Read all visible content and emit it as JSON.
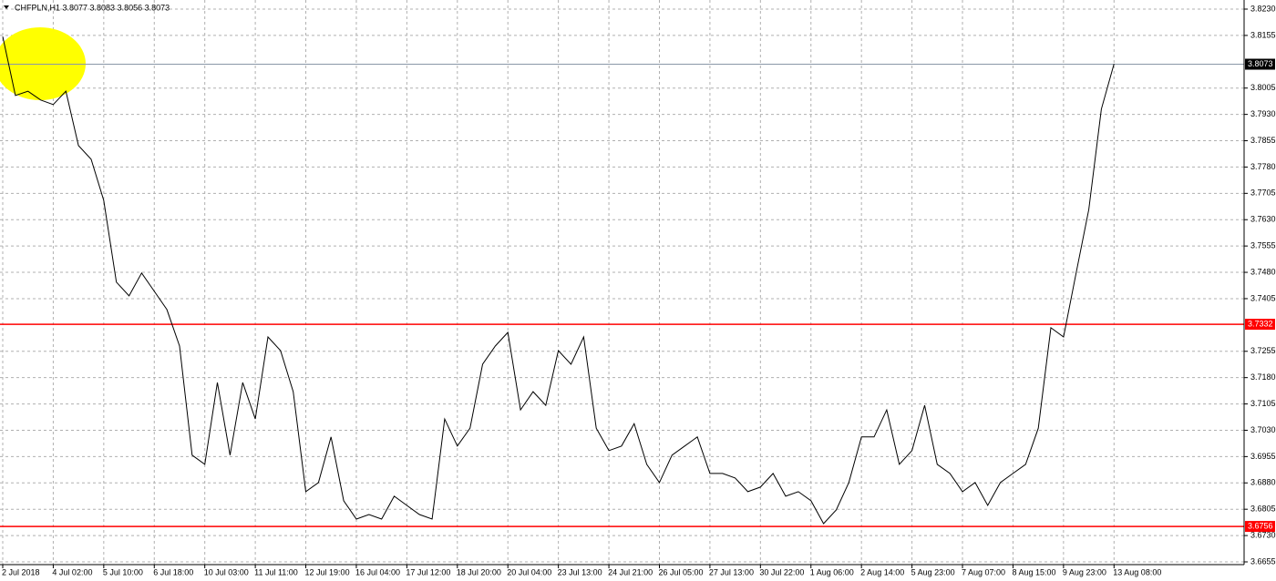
{
  "chart_data": {
    "type": "line",
    "title": "CHFPLN,H1  3.8077 3.8083 3.8056 3.8073",
    "color": "#000000",
    "grid": true,
    "values": [
      3.8152,
      3.7984,
      3.7996,
      3.7971,
      3.7958,
      3.7996,
      3.7841,
      3.7802,
      3.7685,
      3.7452,
      3.7413,
      3.7478,
      3.7426,
      3.7374,
      3.727,
      3.6959,
      3.6933,
      3.7166,
      3.6959,
      3.7166,
      3.7062,
      3.7296,
      3.7257,
      3.714,
      3.6855,
      3.6881,
      3.7011,
      3.6829,
      3.6777,
      3.679,
      3.6777,
      3.6842,
      3.6816,
      3.679,
      3.6777,
      3.7062,
      3.6985,
      3.7036,
      3.7218,
      3.727,
      3.7309,
      3.7088,
      3.714,
      3.7101,
      3.7257,
      3.7218,
      3.7296,
      3.7036,
      3.6972,
      3.6985,
      3.7049,
      3.6933,
      3.6881,
      3.6959,
      3.6985,
      3.7011,
      3.6907,
      3.6907,
      3.6894,
      3.6855,
      3.6868,
      3.6907,
      3.6842,
      3.6855,
      3.6829,
      3.6764,
      3.6803,
      3.6881,
      3.7011,
      3.7011,
      3.7088,
      3.6933,
      3.6972,
      3.7101,
      3.6933,
      3.6907,
      3.6855,
      3.6881,
      3.6816,
      3.6881,
      3.6907,
      3.6933,
      3.7036,
      3.7322,
      3.7296,
      3.7478,
      3.7659,
      3.7945,
      3.8074
    ],
    "ylim": [
      3.6655,
      3.823
    ],
    "yticks": [
      {
        "value": 3.823,
        "label": "3.8230"
      },
      3.8155,
      3.8005,
      {
        "value": 3.793,
        "label": "3.7930"
      },
      3.7855,
      {
        "value": 3.778,
        "label": "3.7780"
      },
      3.7705,
      {
        "value": 3.763,
        "label": "3.7630"
      },
      3.7555,
      {
        "value": 3.748,
        "label": "3.7480"
      },
      3.7405,
      3.7255,
      {
        "value": 3.718,
        "label": "3.7180"
      },
      3.7105,
      {
        "value": 3.703,
        "label": "3.7030"
      },
      3.6955,
      {
        "value": 3.688,
        "label": "3.6880"
      },
      3.6805,
      {
        "value": 3.673,
        "label": "3.6730"
      },
      3.6655
    ],
    "xlim": [
      0,
      98.3
    ],
    "xticks": [
      {
        "value": 0,
        "label": "2 Jul 2018"
      },
      {
        "value": 4,
        "label": "4 Jul 02:00"
      },
      {
        "value": 8,
        "label": "5 Jul 10:00"
      },
      {
        "value": 12,
        "label": "6 Jul 18:00"
      },
      {
        "value": 16,
        "label": "10 Jul 03:00"
      },
      {
        "value": 20,
        "label": "11 Jul 11:00"
      },
      {
        "value": 24,
        "label": "12 Jul 19:00"
      },
      {
        "value": 28,
        "label": "16 Jul 04:00"
      },
      {
        "value": 32,
        "label": "17 Jul 12:00"
      },
      {
        "value": 36,
        "label": "18 Jul 20:00"
      },
      {
        "value": 40,
        "label": "20 Jul 04:00"
      },
      {
        "value": 44,
        "label": "23 Jul 13:00"
      },
      {
        "value": 48,
        "label": "24 Jul 21:00"
      },
      {
        "value": 52,
        "label": "26 Jul 05:00"
      },
      {
        "value": 56,
        "label": "27 Jul 13:00"
      },
      {
        "value": 60,
        "label": "30 Jul 22:00"
      },
      {
        "value": 64,
        "label": "1 Aug 06:00"
      },
      {
        "value": 68,
        "label": "2 Aug 14:00"
      },
      {
        "value": 72,
        "label": "5 Aug 23:00"
      },
      {
        "value": 76,
        "label": "7 Aug 07:00"
      },
      {
        "value": 80,
        "label": "8 Aug 15:00"
      },
      {
        "value": 84,
        "label": "9 Aug 23:00"
      },
      {
        "value": 88,
        "label": "13 Aug 08:00"
      }
    ],
    "levels": [
      {
        "value": 3.8073,
        "color": "#000000"
      },
      {
        "value": 3.7332,
        "color": "#ff0000"
      },
      {
        "value": 3.6756,
        "color": "#ff0000"
      }
    ]
  }
}
